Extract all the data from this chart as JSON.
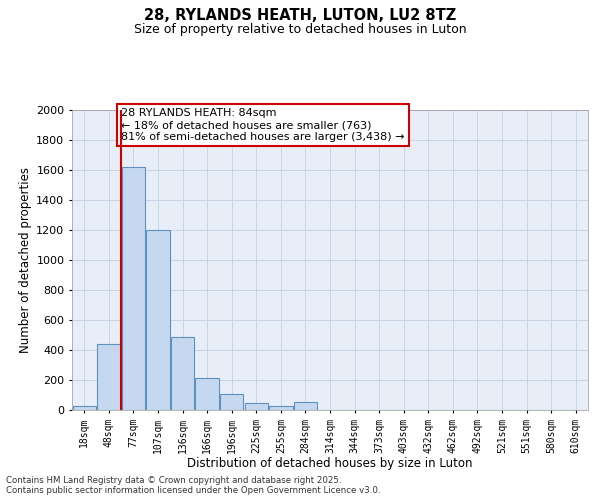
{
  "title": "28, RYLANDS HEATH, LUTON, LU2 8TZ",
  "subtitle": "Size of property relative to detached houses in Luton",
  "xlabel": "Distribution of detached houses by size in Luton",
  "ylabel": "Number of detached properties",
  "categories": [
    "18sqm",
    "48sqm",
    "77sqm",
    "107sqm",
    "136sqm",
    "166sqm",
    "196sqm",
    "225sqm",
    "255sqm",
    "284sqm",
    "314sqm",
    "344sqm",
    "373sqm",
    "403sqm",
    "432sqm",
    "462sqm",
    "492sqm",
    "521sqm",
    "551sqm",
    "580sqm",
    "610sqm"
  ],
  "values": [
    30,
    440,
    1620,
    1200,
    490,
    215,
    110,
    45,
    30,
    55,
    0,
    0,
    0,
    0,
    0,
    0,
    0,
    0,
    0,
    0,
    0
  ],
  "bar_color": "#c5d8f0",
  "bar_edge_color": "#6090c0",
  "highlight_line_index": 2,
  "annotation_text": "28 RYLANDS HEATH: 84sqm\n← 18% of detached houses are smaller (763)\n81% of semi-detached houses are larger (3,438) →",
  "annotation_box_facecolor": "#ffffff",
  "annotation_box_edgecolor": "#cc0000",
  "highlight_line_color": "#cc0000",
  "ylim": [
    0,
    2000
  ],
  "yticks": [
    0,
    200,
    400,
    600,
    800,
    1000,
    1200,
    1400,
    1600,
    1800,
    2000
  ],
  "grid_color": "#c8d4e8",
  "background_color": "#e8eef8",
  "footer_line1": "Contains HM Land Registry data © Crown copyright and database right 2025.",
  "footer_line2": "Contains public sector information licensed under the Open Government Licence v3.0."
}
